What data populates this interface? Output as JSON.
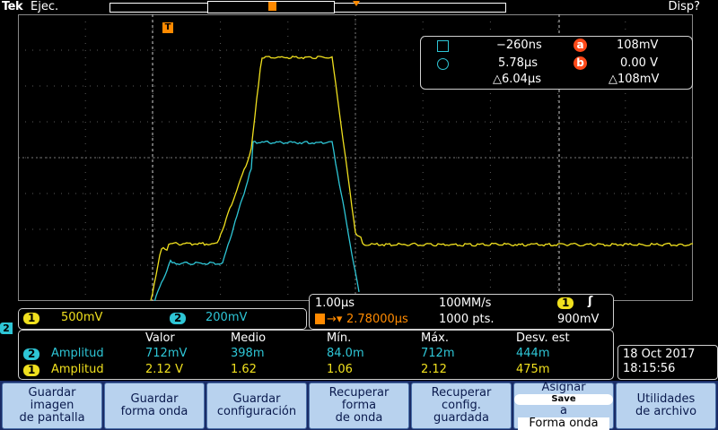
{
  "top": {
    "brand": "Tek",
    "run_state": "Ejec.",
    "display_label": "Disp?"
  },
  "colors": {
    "ch1": "#f0e01e",
    "ch2": "#2ec6d6",
    "grid": "#6a6a6a",
    "cursor": "#ff6a00",
    "menu_bg": "#1a2c66",
    "button": "#b8d2ee"
  },
  "markers": {
    "trigger_badge": "T",
    "ch2_marker": "2"
  },
  "cursors": {
    "a_time": "−260ns",
    "a_label": "a",
    "a_value": "108mV",
    "b_time": "5.78µs",
    "b_label": "b",
    "b_value": "0.00 V",
    "delta_time": "△6.04µs",
    "delta_value": "△108mV"
  },
  "vertical": {
    "ch1_num": "1",
    "ch1_scale": "500mV",
    "ch2_num": "2",
    "ch2_scale": "200mV"
  },
  "horizontal": {
    "time_div": "1.00µs",
    "sample_rate": "100MM/s",
    "trig_pos": "2.78000µs",
    "record_len": "1000 pts.",
    "trig_ch": "1",
    "trig_slope": "ʃ",
    "trig_level": "900mV"
  },
  "measurements": {
    "headers": [
      "Valor",
      "Medio",
      "Mín.",
      "Máx.",
      "Desv. est"
    ],
    "rows": [
      {
        "ch": "2",
        "name": "Amplitud",
        "values": [
          "712mV",
          "398m",
          "84.0m",
          "712m",
          "444m"
        ]
      },
      {
        "ch": "1",
        "name": "Amplitud",
        "values": [
          "2.12 V",
          "1.62",
          "1.06",
          "2.12",
          "475m"
        ]
      }
    ]
  },
  "datetime": {
    "date": "18 Oct  2017",
    "time": "18:15:56"
  },
  "menu": {
    "b1": [
      "Guardar",
      "imagen",
      "de pantalla"
    ],
    "b2": [
      "Guardar",
      "forma onda"
    ],
    "b3": [
      "Guardar",
      "configuración"
    ],
    "b4": [
      "Recuperar",
      "forma",
      "de onda"
    ],
    "b5": [
      "Recuperar",
      "config.",
      "guardada"
    ],
    "b6_top": "Asignar",
    "b6_badge": "Save",
    "b6_mid": "a",
    "b6_bottom": "Forma onda",
    "b7": [
      "Utilidades",
      "de archivo"
    ]
  }
}
